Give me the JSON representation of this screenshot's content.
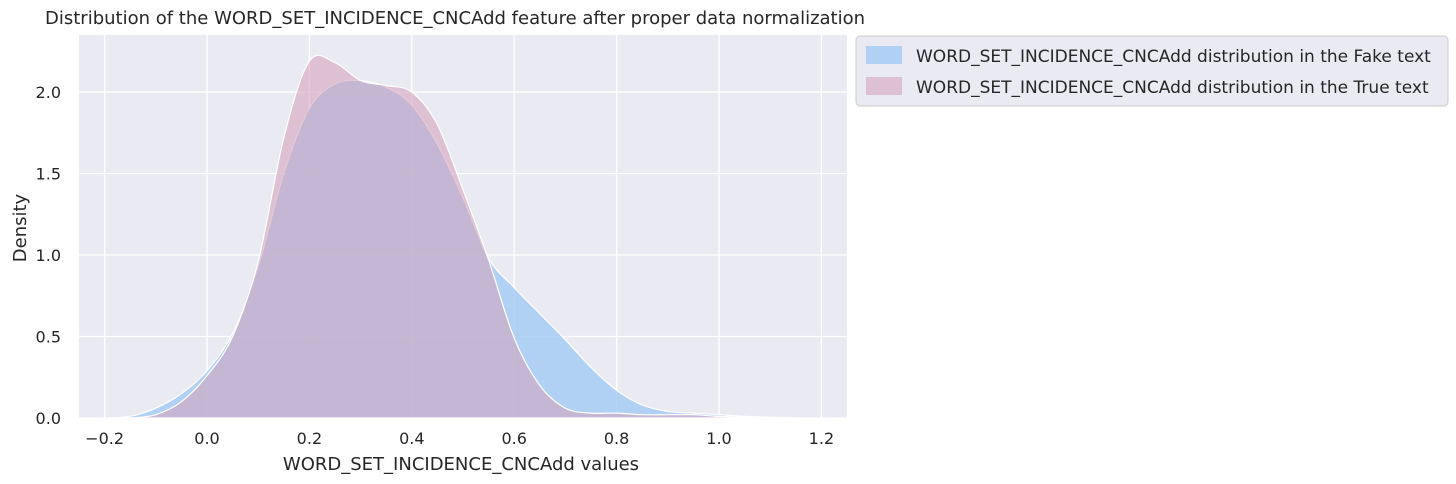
{
  "chart_data": {
    "type": "area",
    "title": "Distribution of the WORD_SET_INCIDENCE_CNCAdd feature after proper data normalization",
    "xlabel": "WORD_SET_INCIDENCE_CNCAdd values",
    "ylabel": "Density",
    "xlim": [
      -0.25,
      1.25
    ],
    "ylim": [
      0,
      2.35
    ],
    "xticks": [
      "−0.2",
      "0.0",
      "0.2",
      "0.4",
      "0.6",
      "0.8",
      "1.0",
      "1.2"
    ],
    "xtick_values": [
      -0.2,
      0,
      0.2,
      0.4,
      0.6,
      0.8,
      1.0,
      1.2
    ],
    "yticks": [
      "0.0",
      "0.5",
      "1.0",
      "1.5",
      "2.0"
    ],
    "ytick_values": [
      0,
      0.5,
      1.0,
      1.5,
      2.0
    ],
    "grid": true,
    "legend_placement": "outside upper-right",
    "series": [
      {
        "name": "WORD_SET_INCIDENCE_CNCAdd distribution in the Fake text",
        "color": "#a1c9f4",
        "x": [
          -0.2,
          -0.15,
          -0.1,
          -0.05,
          0.0,
          0.05,
          0.1,
          0.15,
          0.2,
          0.25,
          0.3,
          0.35,
          0.4,
          0.45,
          0.5,
          0.55,
          0.6,
          0.65,
          0.7,
          0.75,
          0.8,
          0.85,
          0.9,
          0.95,
          1.0,
          1.05,
          1.1,
          1.15
        ],
        "y": [
          0.0,
          0.01,
          0.06,
          0.15,
          0.29,
          0.52,
          0.93,
          1.5,
          1.9,
          2.05,
          2.07,
          2.03,
          1.92,
          1.68,
          1.35,
          0.98,
          0.8,
          0.64,
          0.48,
          0.31,
          0.17,
          0.08,
          0.04,
          0.03,
          0.02,
          0.01,
          0.005,
          0.0
        ]
      },
      {
        "name": "WORD_SET_INCIDENCE_CNCAdd distribution in the True text",
        "color": "#d4a5bd",
        "x": [
          -0.15,
          -0.1,
          -0.05,
          0.0,
          0.05,
          0.1,
          0.15,
          0.2,
          0.25,
          0.3,
          0.35,
          0.4,
          0.45,
          0.5,
          0.55,
          0.6,
          0.65,
          0.7,
          0.75,
          0.8,
          0.85,
          0.9,
          0.95,
          1.0,
          1.05,
          1.1
        ],
        "y": [
          0.0,
          0.02,
          0.1,
          0.26,
          0.5,
          0.96,
          1.72,
          2.19,
          2.18,
          2.07,
          2.04,
          2.0,
          1.8,
          1.4,
          0.97,
          0.49,
          0.2,
          0.06,
          0.03,
          0.03,
          0.02,
          0.02,
          0.02,
          0.01,
          0.005,
          0.0
        ]
      }
    ]
  }
}
